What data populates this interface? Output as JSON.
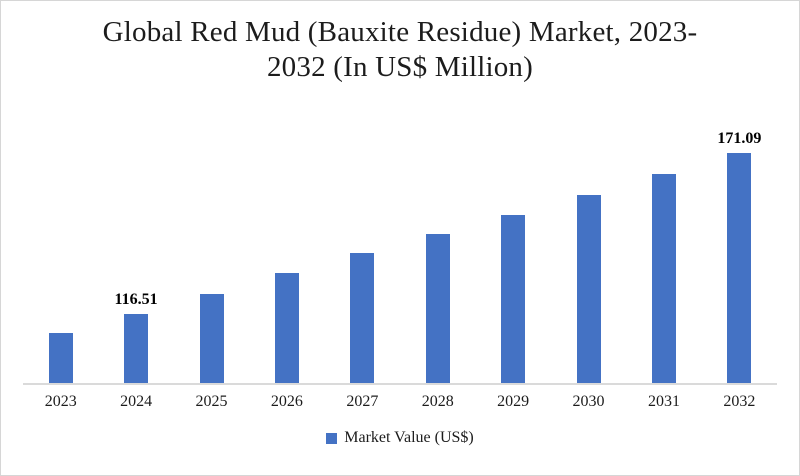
{
  "chart_data": {
    "type": "bar",
    "title": "Global Red Mud (Bauxite Residue) Market, 2023-2032 (In US$ Million)",
    "xlabel": "",
    "ylabel": "",
    "ylim": [
      93,
      182
    ],
    "grid": false,
    "legend_position": "bottom",
    "bar_color": "#4472C4",
    "axis_line_color": "#DADADA",
    "series_name": "Market Value (US$)",
    "categories": [
      "2023",
      "2024",
      "2025",
      "2026",
      "2027",
      "2028",
      "2029",
      "2030",
      "2031",
      "2032"
    ],
    "values": [
      110.0,
      116.51,
      123.3,
      130.2,
      137.0,
      143.5,
      150.1,
      156.9,
      163.9,
      171.09
    ],
    "points": [
      {
        "year": "2023",
        "value": 110.0,
        "label": ""
      },
      {
        "year": "2024",
        "value": 116.51,
        "label": "116.51"
      },
      {
        "year": "2025",
        "value": 123.3,
        "label": ""
      },
      {
        "year": "2026",
        "value": 130.2,
        "label": ""
      },
      {
        "year": "2027",
        "value": 137.0,
        "label": ""
      },
      {
        "year": "2028",
        "value": 143.5,
        "label": ""
      },
      {
        "year": "2029",
        "value": 150.1,
        "label": ""
      },
      {
        "year": "2030",
        "value": 156.9,
        "label": ""
      },
      {
        "year": "2031",
        "value": 163.9,
        "label": ""
      },
      {
        "year": "2032",
        "value": 171.09,
        "label": "171.09"
      }
    ]
  },
  "legend": {
    "label": "Market Value (US$)",
    "swatch_color": "#4472C4"
  }
}
